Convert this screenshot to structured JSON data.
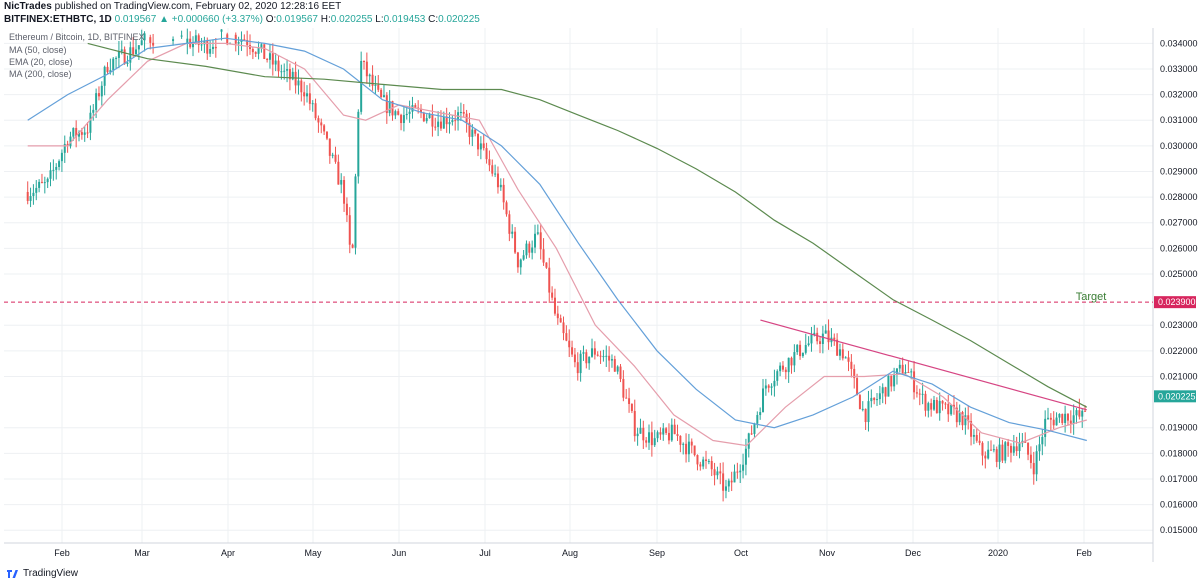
{
  "header": {
    "publisher": "NicTrades",
    "published_text": "published on TradingView.com, February 02, 2020 12:28:16 EET",
    "symbol": "BITFINEX:ETHBTC, 1D",
    "open_value": "0.019567",
    "change_value": "+0.000660 (+3.37%)",
    "o_label": "O:",
    "h_label": "H:",
    "h_value": "0.020255",
    "l_label": "L:",
    "l_value": "0.019453",
    "c_label": "C:",
    "c_value": "0.020225",
    "last_value": "0.020225",
    "up_arrow": "▲"
  },
  "legend": {
    "title": "Ethereum / Bitcoin, 1D, BITFINEX",
    "items": [
      "MA (50, close)",
      "EMA (20, close)",
      "MA (200, close)"
    ]
  },
  "footer": {
    "brand": "TradingView",
    "logo_icon": "tradingview-logo-icon"
  },
  "colors": {
    "up": "#26a69a",
    "down": "#ef5350",
    "ma50": "#64a0d9",
    "ema20": "#e59eac",
    "ma200": "#5c8a4f",
    "trendline": "#d64583",
    "target": "#d7265e",
    "grid": "#eef0f3"
  },
  "chart_data": {
    "type": "candlestick",
    "x_tick_labels": [
      "Feb",
      "Mar",
      "Apr",
      "May",
      "Jun",
      "Jul",
      "Aug",
      "Sep",
      "Oct",
      "Nov",
      "Dec",
      "2020",
      "Feb"
    ],
    "y_ticks": [
      0.034,
      0.033,
      0.032,
      0.031,
      0.03,
      0.029,
      0.028,
      0.027,
      0.026,
      0.025,
      0.023,
      0.022,
      0.021,
      0.019,
      0.018,
      0.017,
      0.016,
      0.015
    ],
    "y_tick_labels": [
      "0.034000",
      "0.033000",
      "0.032000",
      "0.031000",
      "0.030000",
      "0.029000",
      "0.028000",
      "0.027000",
      "0.026000",
      "0.025000",
      "0.023000",
      "0.022000",
      "0.021000",
      "0.019000",
      "0.018000",
      "0.017000",
      "0.016000",
      "0.015000"
    ],
    "ylim": [
      0.0145,
      0.0346
    ],
    "target": {
      "label": "Target",
      "value": 0.0239,
      "value_label": "0.023900"
    },
    "last": {
      "value": 0.020225,
      "label": "0.020225"
    },
    "close_path": [
      [
        "2019-01-20",
        0.0282
      ],
      [
        "2019-01-27",
        0.0285
      ],
      [
        "2019-02-03",
        0.0303
      ],
      [
        "2019-02-10",
        0.0307
      ],
      [
        "2019-02-17",
        0.0332
      ],
      [
        "2019-02-24",
        0.0336
      ],
      [
        "2019-03-03",
        0.0342
      ],
      [
        "2019-03-10",
        0.0343
      ],
      [
        "2019-03-17",
        0.0341
      ],
      [
        "2019-03-24",
        0.0339
      ],
      [
        "2019-03-31",
        0.0343
      ],
      [
        "2019-04-07",
        0.0342
      ],
      [
        "2019-04-14",
        0.0335
      ],
      [
        "2019-04-21",
        0.0328
      ],
      [
        "2019-04-28",
        0.0322
      ],
      [
        "2019-05-05",
        0.0303
      ],
      [
        "2019-05-12",
        0.0282
      ],
      [
        "2019-05-15",
        0.0252
      ],
      [
        "2019-05-18",
        0.0333
      ],
      [
        "2019-05-25",
        0.0318
      ],
      [
        "2019-06-01",
        0.0312
      ],
      [
        "2019-06-08",
        0.0313
      ],
      [
        "2019-06-15",
        0.031
      ],
      [
        "2019-06-22",
        0.0312
      ],
      [
        "2019-06-29",
        0.03
      ],
      [
        "2019-07-06",
        0.0285
      ],
      [
        "2019-07-13",
        0.0255
      ],
      [
        "2019-07-20",
        0.0265
      ],
      [
        "2019-07-27",
        0.0232
      ],
      [
        "2019-08-03",
        0.0214
      ],
      [
        "2019-08-10",
        0.022
      ],
      [
        "2019-08-17",
        0.0215
      ],
      [
        "2019-08-24",
        0.019
      ],
      [
        "2019-08-31",
        0.0185
      ],
      [
        "2019-09-07",
        0.0188
      ],
      [
        "2019-09-14",
        0.018
      ],
      [
        "2019-09-21",
        0.0173
      ],
      [
        "2019-09-26",
        0.0165
      ],
      [
        "2019-10-03",
        0.0182
      ],
      [
        "2019-10-10",
        0.0207
      ],
      [
        "2019-10-17",
        0.0215
      ],
      [
        "2019-10-24",
        0.0222
      ],
      [
        "2019-10-31",
        0.0226
      ],
      [
        "2019-11-07",
        0.0219
      ],
      [
        "2019-11-14",
        0.0195
      ],
      [
        "2019-11-21",
        0.0205
      ],
      [
        "2019-11-28",
        0.0214
      ],
      [
        "2019-12-05",
        0.02
      ],
      [
        "2019-12-12",
        0.0197
      ],
      [
        "2019-12-19",
        0.0194
      ],
      [
        "2019-12-26",
        0.018
      ],
      [
        "2020-01-02",
        0.018
      ],
      [
        "2020-01-09",
        0.0185
      ],
      [
        "2020-01-14",
        0.0175
      ],
      [
        "2020-01-18",
        0.0192
      ],
      [
        "2020-01-25",
        0.0195
      ],
      [
        "2020-02-01",
        0.0194
      ],
      [
        "2020-02-02",
        0.020225
      ]
    ],
    "series": [
      {
        "name": "EMA (20, close)",
        "points": [
          [
            "2019-01-20",
            0.03
          ],
          [
            "2019-02-03",
            0.03
          ],
          [
            "2019-02-17",
            0.0318
          ],
          [
            "2019-03-03",
            0.0333
          ],
          [
            "2019-03-17",
            0.034
          ],
          [
            "2019-03-31",
            0.034
          ],
          [
            "2019-04-14",
            0.0338
          ],
          [
            "2019-04-28",
            0.033
          ],
          [
            "2019-05-12",
            0.0312
          ],
          [
            "2019-05-20",
            0.031
          ],
          [
            "2019-06-01",
            0.0316
          ],
          [
            "2019-06-15",
            0.0313
          ],
          [
            "2019-06-29",
            0.031
          ],
          [
            "2019-07-13",
            0.0283
          ],
          [
            "2019-07-27",
            0.026
          ],
          [
            "2019-08-10",
            0.023
          ],
          [
            "2019-08-24",
            0.0214
          ],
          [
            "2019-09-07",
            0.0195
          ],
          [
            "2019-09-21",
            0.0185
          ],
          [
            "2019-10-03",
            0.0183
          ],
          [
            "2019-10-17",
            0.0198
          ],
          [
            "2019-10-31",
            0.021
          ],
          [
            "2019-11-14",
            0.021
          ],
          [
            "2019-11-28",
            0.0211
          ],
          [
            "2019-12-12",
            0.0202
          ],
          [
            "2019-12-26",
            0.0188
          ],
          [
            "2020-01-09",
            0.0184
          ],
          [
            "2020-01-23",
            0.019
          ],
          [
            "2020-02-02",
            0.0193
          ]
        ]
      },
      {
        "name": "MA (50, close)",
        "points": [
          [
            "2019-01-20",
            0.031
          ],
          [
            "2019-02-03",
            0.032
          ],
          [
            "2019-02-17",
            0.0328
          ],
          [
            "2019-03-03",
            0.0338
          ],
          [
            "2019-03-17",
            0.034
          ],
          [
            "2019-03-31",
            0.0342
          ],
          [
            "2019-04-14",
            0.034
          ],
          [
            "2019-04-28",
            0.0337
          ],
          [
            "2019-05-12",
            0.033
          ],
          [
            "2019-05-26",
            0.0318
          ],
          [
            "2019-06-09",
            0.0313
          ],
          [
            "2019-06-23",
            0.031
          ],
          [
            "2019-07-07",
            0.03
          ],
          [
            "2019-07-21",
            0.0285
          ],
          [
            "2019-08-04",
            0.0262
          ],
          [
            "2019-08-18",
            0.024
          ],
          [
            "2019-09-01",
            0.022
          ],
          [
            "2019-09-15",
            0.0205
          ],
          [
            "2019-09-29",
            0.0193
          ],
          [
            "2019-10-13",
            0.019
          ],
          [
            "2019-10-27",
            0.0195
          ],
          [
            "2019-11-10",
            0.0202
          ],
          [
            "2019-11-24",
            0.0212
          ],
          [
            "2019-12-08",
            0.0207
          ],
          [
            "2019-12-22",
            0.0198
          ],
          [
            "2020-01-05",
            0.0192
          ],
          [
            "2020-01-19",
            0.0189
          ],
          [
            "2020-02-02",
            0.0185
          ]
        ]
      },
      {
        "name": "MA (200, close)",
        "points": [
          [
            "2019-02-10",
            0.034
          ],
          [
            "2019-03-03",
            0.0334
          ],
          [
            "2019-03-24",
            0.0331
          ],
          [
            "2019-04-14",
            0.0327
          ],
          [
            "2019-05-05",
            0.0326
          ],
          [
            "2019-05-26",
            0.0324
          ],
          [
            "2019-06-16",
            0.0322
          ],
          [
            "2019-07-07",
            0.0322
          ],
          [
            "2019-07-21",
            0.0318
          ],
          [
            "2019-08-04",
            0.0312
          ],
          [
            "2019-08-18",
            0.0306
          ],
          [
            "2019-09-01",
            0.0299
          ],
          [
            "2019-09-15",
            0.0291
          ],
          [
            "2019-09-29",
            0.0282
          ],
          [
            "2019-10-13",
            0.0271
          ],
          [
            "2019-10-27",
            0.0262
          ],
          [
            "2019-11-10",
            0.0251
          ],
          [
            "2019-11-24",
            0.024
          ],
          [
            "2019-12-08",
            0.0232
          ],
          [
            "2019-12-22",
            0.0224
          ],
          [
            "2020-01-05",
            0.0215
          ],
          [
            "2020-01-19",
            0.0206
          ],
          [
            "2020-02-02",
            0.0198
          ]
        ]
      }
    ],
    "trendline": [
      [
        "2019-10-08",
        0.0232
      ],
      [
        "2020-02-02",
        0.0197
      ]
    ],
    "grid": true
  }
}
